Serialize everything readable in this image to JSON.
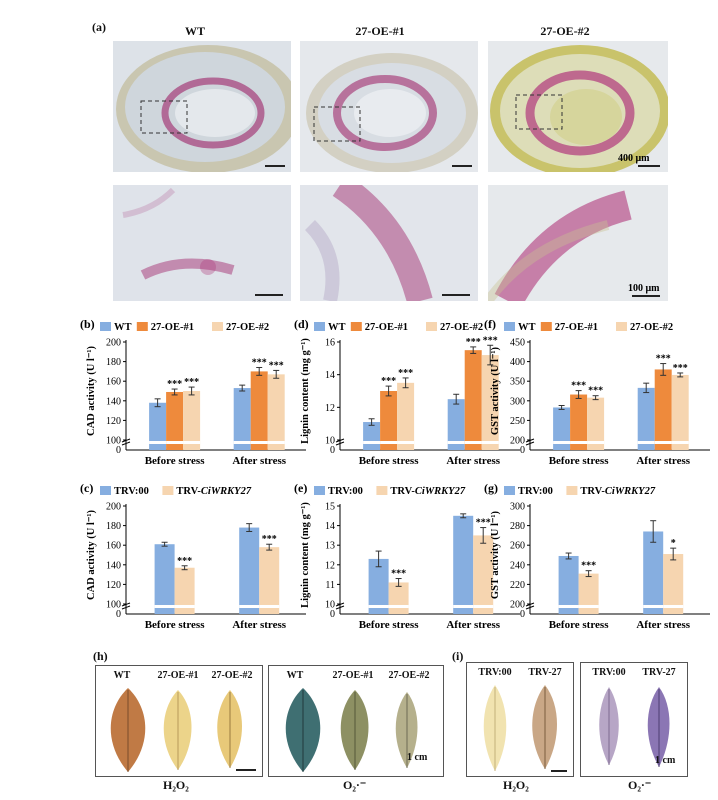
{
  "panel_a": {
    "letter": "(a)",
    "columns": [
      "WT",
      "27-OE-#1",
      "27-OE-#2"
    ],
    "scale_top": "400 μm",
    "scale_bottom": "100 μm"
  },
  "chart_data": [
    {
      "id": "b",
      "letter": "(b)",
      "type": "bar",
      "ylabel": "CAD activity (U l⁻¹)",
      "legend": [
        "WT",
        "27-OE-#1",
        "27-OE-#2"
      ],
      "categories": [
        "Before stress",
        "After stress"
      ],
      "ylim": [
        100,
        200
      ],
      "yticks": [
        100,
        120,
        140,
        160,
        180,
        200
      ],
      "series": [
        {
          "name": "WT",
          "values": [
            138,
            153
          ],
          "err": [
            4,
            3
          ]
        },
        {
          "name": "27-OE-#1",
          "values": [
            149,
            170
          ],
          "err": [
            3,
            4
          ]
        },
        {
          "name": "27-OE-#2",
          "values": [
            150,
            167
          ],
          "err": [
            4,
            4
          ]
        }
      ],
      "sig": [
        [
          "",
          "***",
          "***"
        ],
        [
          "",
          "***",
          "***"
        ]
      ]
    },
    {
      "id": "d",
      "letter": "(d)",
      "type": "bar",
      "ylabel": "Lignin content (mg g⁻¹)",
      "legend": [
        "WT",
        "27-OE-#1",
        "27-OE-#2"
      ],
      "categories": [
        "Before stress",
        "After stress"
      ],
      "ylim": [
        10,
        16
      ],
      "yticks": [
        10,
        12,
        14,
        16
      ],
      "series": [
        {
          "name": "WT",
          "values": [
            11.1,
            12.5
          ],
          "err": [
            0.2,
            0.3
          ]
        },
        {
          "name": "27-OE-#1",
          "values": [
            13.0,
            15.5
          ],
          "err": [
            0.3,
            0.2
          ]
        },
        {
          "name": "27-OE-#2",
          "values": [
            13.5,
            15.2
          ],
          "err": [
            0.3,
            0.6
          ]
        }
      ],
      "sig": [
        [
          "",
          "***",
          "***"
        ],
        [
          "",
          "***",
          "***"
        ]
      ]
    },
    {
      "id": "f",
      "letter": "(f)",
      "type": "bar",
      "ylabel": "GST activity (U l⁻¹)",
      "legend": [
        "WT",
        "27-OE-#1",
        "27-OE-#2"
      ],
      "categories": [
        "Before stress",
        "After stress"
      ],
      "ylim": [
        200,
        450
      ],
      "yticks": [
        200,
        250,
        300,
        350,
        400,
        450
      ],
      "series": [
        {
          "name": "WT",
          "values": [
            283,
            333
          ],
          "err": [
            5,
            12
          ]
        },
        {
          "name": "27-OE-#1",
          "values": [
            316,
            380
          ],
          "err": [
            10,
            15
          ]
        },
        {
          "name": "27-OE-#2",
          "values": [
            308,
            366
          ],
          "err": [
            5,
            5
          ]
        }
      ],
      "sig": [
        [
          "",
          "***",
          "***"
        ],
        [
          "",
          "***",
          "***"
        ]
      ]
    },
    {
      "id": "c",
      "letter": "(c)",
      "type": "bar",
      "ylabel": "CAD activity (U l⁻¹)",
      "legend": [
        "TRV:00",
        "TRV-CiWRKY27"
      ],
      "categories": [
        "Before stress",
        "After stress"
      ],
      "ylim": [
        100,
        200
      ],
      "yticks": [
        100,
        120,
        140,
        160,
        180,
        200
      ],
      "series": [
        {
          "name": "TRV:00",
          "values": [
            161,
            178
          ],
          "err": [
            2,
            4
          ]
        },
        {
          "name": "TRV-CiWRKY27",
          "values": [
            137,
            158
          ],
          "err": [
            2,
            3
          ]
        }
      ],
      "sig": [
        [
          "",
          "***"
        ],
        [
          "",
          "***"
        ]
      ]
    },
    {
      "id": "e",
      "letter": "(e)",
      "type": "bar",
      "ylabel": "Lignin content (mg g⁻¹)",
      "legend": [
        "TRV:00",
        "TRV-CiWRKY27"
      ],
      "categories": [
        "Before stress",
        "After stress"
      ],
      "ylim": [
        10,
        15
      ],
      "yticks": [
        10,
        11,
        12,
        13,
        14,
        15
      ],
      "series": [
        {
          "name": "TRV:00",
          "values": [
            12.3,
            14.5
          ],
          "err": [
            0.4,
            0.1
          ]
        },
        {
          "name": "TRV-CiWRKY27",
          "values": [
            11.1,
            13.5
          ],
          "err": [
            0.2,
            0.4
          ]
        }
      ],
      "sig": [
        [
          "",
          "***"
        ],
        [
          "",
          "***"
        ]
      ]
    },
    {
      "id": "g",
      "letter": "(g)",
      "type": "bar",
      "ylabel": "GST activity (U l⁻¹)",
      "legend": [
        "TRV:00",
        "TRV-CiWRKY27"
      ],
      "categories": [
        "Before stress",
        "After stress"
      ],
      "ylim": [
        200,
        300
      ],
      "yticks": [
        200,
        220,
        240,
        260,
        280,
        300
      ],
      "series": [
        {
          "name": "TRV:00",
          "values": [
            249,
            274
          ],
          "err": [
            3,
            11
          ]
        },
        {
          "name": "TRV-CiWRKY27",
          "values": [
            231,
            251
          ],
          "err": [
            3,
            6
          ]
        }
      ],
      "sig": [
        [
          "",
          "***"
        ],
        [
          "",
          "*"
        ]
      ]
    }
  ],
  "panel_h": {
    "letter": "(h)",
    "left_labels": [
      "WT",
      "27-OE-#1",
      "27-OE-#2"
    ],
    "right_labels": [
      "WT",
      "27-OE-#1",
      "27-OE-#2"
    ],
    "caption_left": "H₂O₂",
    "caption_right": "O₂·⁻",
    "scale": "1 cm"
  },
  "panel_i": {
    "letter": "(i)",
    "left_labels": [
      "TRV:00",
      "TRV-27"
    ],
    "right_labels": [
      "TRV:00",
      "TRV-27"
    ],
    "caption_left": "H₂O₂",
    "caption_right": "O₂·⁻",
    "scale": "1 cm"
  },
  "colors": {
    "blue": "#86aee0",
    "orange": "#ee8a3c",
    "peach": "#f6d5b0",
    "stain": "#b0357c"
  }
}
